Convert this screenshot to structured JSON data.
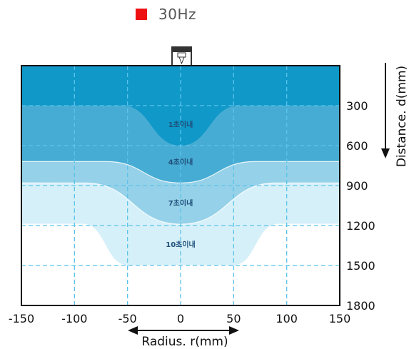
{
  "legend": {
    "label": "30Hz",
    "color": "#ee1111"
  },
  "chart_data": {
    "type": "area",
    "x": [
      -150,
      -100,
      -50,
      0,
      50,
      100,
      150
    ],
    "xlim": [
      -150,
      150
    ],
    "xticks": [
      -150,
      -100,
      -50,
      0,
      50,
      100,
      150
    ],
    "xlabel": "Radius. r(mm)",
    "ylim": [
      0,
      1800
    ],
    "yticks": [
      300,
      600,
      900,
      1200,
      1500,
      1800
    ],
    "ylabel": "Distance. d(mm)",
    "y_inverted": true,
    "grid": true,
    "bands": [
      {
        "label": "1초이내",
        "color": "#0f98c8",
        "profile": [
          [
            -150,
            300
          ],
          [
            -55,
            300
          ],
          [
            0,
            600
          ],
          [
            55,
            300
          ],
          [
            150,
            300
          ]
        ]
      },
      {
        "label": "4초이내",
        "color": "#47acd4",
        "profile": [
          [
            -150,
            720
          ],
          [
            -70,
            720
          ],
          [
            0,
            880
          ],
          [
            70,
            720
          ],
          [
            150,
            720
          ]
        ]
      },
      {
        "label": "7초이내",
        "color": "#95d1e8",
        "profile": [
          [
            -150,
            880
          ],
          [
            -90,
            880
          ],
          [
            0,
            1190
          ],
          [
            90,
            880
          ],
          [
            150,
            880
          ]
        ]
      },
      {
        "label": "10초이내",
        "color": "#d6f0f9",
        "profile": [
          [
            -150,
            1190
          ],
          [
            -92,
            1190
          ],
          [
            -50,
            1500
          ],
          [
            50,
            1500
          ],
          [
            92,
            1190
          ],
          [
            150,
            1190
          ]
        ]
      }
    ]
  }
}
